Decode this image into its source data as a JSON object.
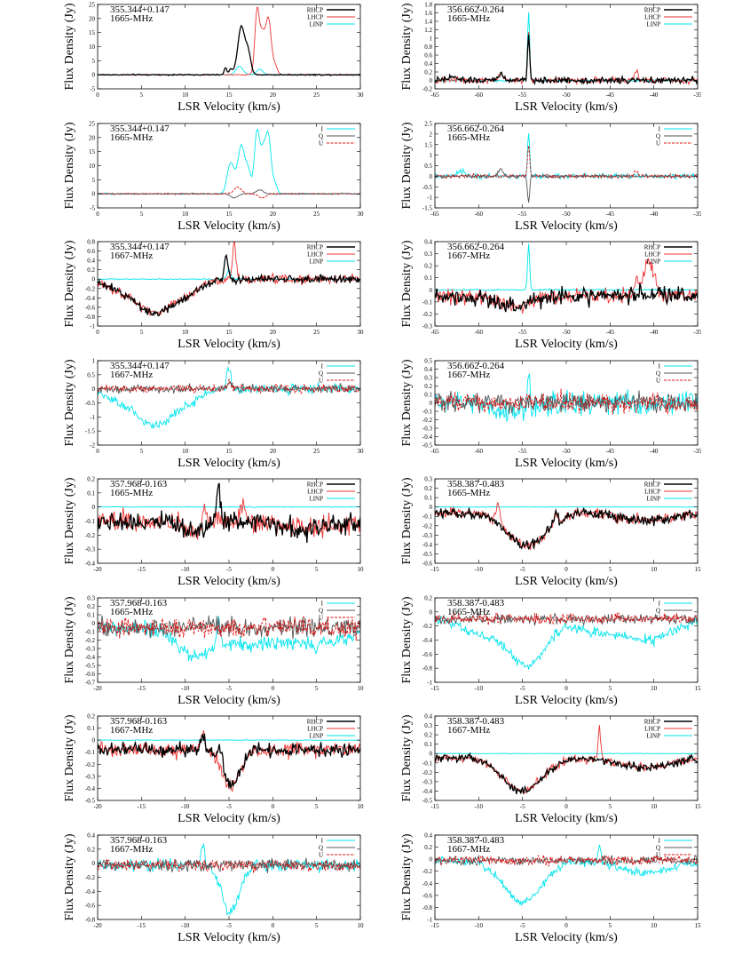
{
  "chart_data": [
    {
      "type": "line",
      "source": "355.344+0.147",
      "line": "1665-MHz",
      "mode": "circular",
      "ylim": [
        -5,
        25
      ],
      "yticks": [
        -5,
        0,
        5,
        10,
        15,
        20,
        25
      ],
      "xlim": [
        0,
        30
      ],
      "xticks": [
        0,
        5,
        10,
        15,
        20,
        25,
        30
      ],
      "xlabel": "LSR Velocity (km/s)",
      "ylabel": "Flux Density (Jy)",
      "legend": [
        "RHCP",
        "LHCP",
        "LINP"
      ],
      "baseline": 0,
      "features": [
        [
          [
            15.2,
            0.2,
            2
          ],
          [
            16.4,
            0.4,
            17
          ],
          [
            17.2,
            0.3,
            7.5
          ],
          [
            14.6,
            0.15,
            2.5
          ]
        ],
        [
          [
            18.2,
            0.25,
            22
          ],
          [
            18.8,
            0.3,
            14
          ],
          [
            19.5,
            0.3,
            19.5
          ],
          [
            20.2,
            0.3,
            3.5
          ]
        ],
        [
          [
            16.2,
            0.4,
            3
          ],
          [
            18.5,
            0.35,
            2
          ]
        ]
      ],
      "noise": [
        0.15,
        0.15,
        0.05
      ]
    },
    {
      "type": "line",
      "source": "356.662-0.264",
      "line": "1665-MHz",
      "mode": "circular",
      "ylim": [
        -0.2,
        1.8
      ],
      "yticks": [
        -0.2,
        0,
        0.2,
        0.4,
        0.6,
        0.8,
        1,
        1.2,
        1.4,
        1.6,
        1.8
      ],
      "xlim": [
        -65,
        -35
      ],
      "xticks": [
        -65,
        -60,
        -55,
        -50,
        -45,
        -40,
        -35
      ],
      "xlabel": "LSR Velocity (km/s)",
      "ylabel": "Flux Density (Jy)",
      "legend": [
        "RHCP",
        "LHCP",
        "LINP"
      ],
      "baseline": 0,
      "features": [
        [
          [
            -54.3,
            0.12,
            1.1
          ],
          [
            -57.5,
            0.3,
            0.15
          ],
          [
            -63,
            0.5,
            0.08
          ]
        ],
        [
          [
            -54.3,
            0.12,
            1.2
          ],
          [
            -42,
            0.2,
            0.25
          ],
          [
            -57.5,
            0.3,
            0.15
          ]
        ],
        [
          [
            -54.3,
            0.12,
            1.6
          ]
        ]
      ],
      "noise": [
        0.05,
        0.05,
        0.02
      ]
    },
    {
      "type": "line",
      "source": "355.344+0.147",
      "line": "1665-MHz",
      "mode": "stokes",
      "ylim": [
        -5,
        25
      ],
      "yticks": [
        -5,
        0,
        5,
        10,
        15,
        20,
        25
      ],
      "xlim": [
        0,
        30
      ],
      "xticks": [
        0,
        5,
        10,
        15,
        20,
        25,
        30
      ],
      "xlabel": "LSR Velocity (km/s)",
      "ylabel": "Flux Density (Jy)",
      "legend": [
        "I",
        "Q",
        "U"
      ],
      "baseline": 0,
      "features": [
        [
          [
            15.2,
            0.4,
            11
          ],
          [
            16.4,
            0.4,
            17
          ],
          [
            17.2,
            0.3,
            7.5
          ],
          [
            18.2,
            0.3,
            22
          ],
          [
            18.9,
            0.3,
            14
          ],
          [
            19.5,
            0.3,
            19.5
          ],
          [
            20.2,
            0.3,
            3.5
          ]
        ],
        [
          [
            15.6,
            0.4,
            -1.5
          ],
          [
            18.5,
            0.4,
            1.5
          ]
        ],
        [
          [
            16,
            0.4,
            2.5
          ],
          [
            18.8,
            0.4,
            -1.5
          ]
        ]
      ],
      "noise": [
        0.2,
        0.15,
        0.15
      ]
    },
    {
      "type": "line",
      "source": "356.662-0.264",
      "line": "1665-MHz",
      "mode": "stokes",
      "ylim": [
        -1.5,
        2.5
      ],
      "yticks": [
        -1.5,
        -1,
        -0.5,
        0,
        0.5,
        1,
        1.5,
        2,
        2.5
      ],
      "xlim": [
        -65,
        -35
      ],
      "xticks": [
        -65,
        -60,
        -55,
        -50,
        -45,
        -40,
        -35
      ],
      "xlabel": "LSR Velocity (km/s)",
      "ylabel": "Flux Density (Jy)",
      "legend": [
        "I",
        "Q",
        "U"
      ],
      "baseline": 0,
      "features": [
        [
          [
            -54.3,
            0.12,
            2.1
          ],
          [
            -62,
            0.5,
            0.2
          ]
        ],
        [
          [
            -54.3,
            0.12,
            -1.3
          ],
          [
            -57.5,
            0.3,
            0.3
          ]
        ],
        [
          [
            -54.3,
            0.12,
            1.5
          ],
          [
            -42,
            0.2,
            0.25
          ]
        ]
      ],
      "noise": [
        0.08,
        0.06,
        0.06
      ]
    },
    {
      "type": "line",
      "source": "355.344+0.147",
      "line": "1667-MHz",
      "mode": "circular",
      "ylim": [
        -1,
        0.8
      ],
      "yticks": [
        -1,
        -0.8,
        -0.6,
        -0.4,
        -0.2,
        0,
        0.2,
        0.4,
        0.6,
        0.8
      ],
      "xlim": [
        0,
        30
      ],
      "xticks": [
        0,
        5,
        10,
        15,
        20,
        25,
        30
      ],
      "xlabel": "LSR Velocity (km/s)",
      "ylabel": "Flux Density (Jy)",
      "legend": [
        "RHCP",
        "LHCP",
        "LINP"
      ],
      "baseline": 0,
      "features": [
        [
          [
            6.5,
            2.2,
            -0.72
          ],
          [
            2,
            1.5,
            -0.15
          ],
          [
            14.7,
            0.2,
            0.55
          ],
          [
            10.5,
            1.5,
            -0.2
          ]
        ],
        [
          [
            6.5,
            2.2,
            -0.72
          ],
          [
            2,
            1.5,
            -0.15
          ],
          [
            15.6,
            0.2,
            0.75
          ],
          [
            10.5,
            1.5,
            -0.2
          ]
        ],
        [
          [
            15,
            0.2,
            0.2
          ]
        ]
      ],
      "noise": [
        0.06,
        0.07,
        0.008
      ]
    },
    {
      "type": "line",
      "source": "356.662-0.264",
      "line": "1667-MHz",
      "mode": "circular",
      "ylim": [
        -0.3,
        0.4
      ],
      "yticks": [
        -0.3,
        -0.2,
        -0.1,
        0,
        0.1,
        0.2,
        0.3,
        0.4
      ],
      "xlim": [
        -65,
        -35
      ],
      "xticks": [
        -65,
        -60,
        -55,
        -50,
        -45,
        -40,
        -35
      ],
      "xlabel": "LSR Velocity (km/s)",
      "ylabel": "Flux Density (Jy)",
      "legend": [
        "RHCP",
        "LHCP",
        "LINP"
      ],
      "baseline": -0.05,
      "features": [
        [
          [
            -56,
            2,
            -0.08
          ]
        ],
        [
          [
            -56,
            2,
            -0.08
          ],
          [
            -40.5,
            0.6,
            0.28
          ],
          [
            -42,
            0.3,
            0.12
          ]
        ],
        [
          [
            -54.3,
            0.12,
            0.38
          ]
        ]
      ],
      "noise": [
        0.05,
        0.05,
        0.005
      ]
    },
    {
      "type": "line",
      "source": "355.344+0.147",
      "line": "1667-MHz",
      "mode": "stokes",
      "ylim": [
        -2,
        1
      ],
      "yticks": [
        -2,
        -1.5,
        -1,
        -0.5,
        0,
        0.5,
        1
      ],
      "xlim": [
        0,
        30
      ],
      "xticks": [
        0,
        5,
        10,
        15,
        20,
        25,
        30
      ],
      "xlabel": "LSR Velocity (km/s)",
      "ylabel": "Flux Density (Jy)",
      "legend": [
        "I",
        "Q",
        "U"
      ],
      "baseline": 0,
      "features": [
        [
          [
            6.5,
            2.2,
            -1.3
          ],
          [
            2,
            1.5,
            -0.3
          ],
          [
            15,
            0.2,
            0.8
          ],
          [
            10.5,
            1.5,
            -0.3
          ]
        ],
        [
          [
            15,
            0.2,
            0.2
          ]
        ],
        [
          [
            15,
            0.2,
            0.3
          ]
        ]
      ],
      "noise": [
        0.12,
        0.1,
        0.1
      ]
    },
    {
      "type": "line",
      "source": "356.662-0.264",
      "line": "1667-MHz",
      "mode": "stokes",
      "ylim": [
        -0.5,
        0.5
      ],
      "yticks": [
        -0.5,
        -0.4,
        -0.3,
        -0.2,
        -0.1,
        0,
        0.1,
        0.2,
        0.3,
        0.4,
        0.5
      ],
      "xlim": [
        -65,
        -35
      ],
      "xticks": [
        -65,
        -60,
        -55,
        -50,
        -45,
        -40,
        -35
      ],
      "xlabel": "LSR Velocity (km/s)",
      "ylabel": "Flux Density (Jy)",
      "legend": [
        "I",
        "Q",
        "U"
      ],
      "baseline": 0,
      "features": [
        [
          [
            -56,
            2,
            -0.12
          ],
          [
            -54.3,
            0.12,
            0.45
          ]
        ],
        [
          [
            -54.3,
            0.12,
            0.05
          ]
        ],
        [
          [
            -54.3,
            0.12,
            0.1
          ]
        ]
      ],
      "noise": [
        0.1,
        0.08,
        0.08
      ]
    },
    {
      "type": "line",
      "source": "357.968-0.163",
      "line": "1665-MHz",
      "mode": "circular",
      "ylim": [
        -0.4,
        0.2
      ],
      "yticks": [
        -0.4,
        -0.3,
        -0.2,
        -0.1,
        0,
        0.1,
        0.2
      ],
      "xlim": [
        -20,
        10
      ],
      "xticks": [
        -20,
        -15,
        -10,
        -5,
        0,
        5,
        10
      ],
      "xlabel": "LSR Velocity (km/s)",
      "ylabel": "Flux Density (Jy)",
      "legend": [
        "RHCP",
        "LHCP",
        "LINP"
      ],
      "baseline": -0.1,
      "features": [
        [
          [
            -6.2,
            0.2,
            0.25
          ],
          [
            -9,
            1.2,
            -0.08
          ],
          [
            4,
            3,
            -0.05
          ]
        ],
        [
          [
            -7.8,
            0.2,
            0.2
          ],
          [
            -9,
            1.2,
            -0.08
          ],
          [
            -3.5,
            0.3,
            0.1
          ],
          [
            4,
            3,
            -0.05
          ]
        ],
        []
      ],
      "noise": [
        0.05,
        0.05,
        0.002
      ]
    },
    {
      "type": "line",
      "source": "358.387-0.483",
      "line": "1665-MHz",
      "mode": "circular",
      "ylim": [
        -0.6,
        0.3
      ],
      "yticks": [
        -0.6,
        -0.5,
        -0.4,
        -0.3,
        -0.2,
        -0.1,
        0,
        0.1,
        0.2,
        0.3
      ],
      "xlim": [
        -15,
        15
      ],
      "xticks": [
        -15,
        -10,
        -5,
        0,
        5,
        10,
        15
      ],
      "xlabel": "LSR Velocity (km/s)",
      "ylabel": "Flux Density (Jy)",
      "legend": [
        "RHCP",
        "LHCP",
        "LINP"
      ],
      "baseline": -0.06,
      "features": [
        [
          [
            -4.5,
            2.2,
            -0.35
          ],
          [
            -1.2,
            0.2,
            0.1
          ],
          [
            9,
            3,
            -0.08
          ]
        ],
        [
          [
            -4.5,
            2.2,
            -0.35
          ],
          [
            -7.8,
            0.2,
            0.22
          ],
          [
            -1.2,
            0.2,
            0.08
          ],
          [
            9,
            3,
            -0.08
          ]
        ],
        []
      ],
      "noise": [
        0.04,
        0.04,
        0.002
      ]
    },
    {
      "type": "line",
      "source": "357.968-0.163",
      "line": "1665-MHz",
      "mode": "stokes",
      "ylim": [
        -0.7,
        0.3
      ],
      "yticks": [
        -0.7,
        -0.6,
        -0.5,
        -0.4,
        -0.3,
        -0.2,
        -0.1,
        0,
        0.1,
        0.2,
        0.3
      ],
      "xlim": [
        -20,
        10
      ],
      "xticks": [
        -20,
        -15,
        -10,
        -5,
        0,
        5,
        10
      ],
      "xlabel": "LSR Velocity (km/s)",
      "ylabel": "Flux Density (Jy)",
      "legend": [
        "I",
        "Q",
        "U"
      ],
      "baseline": -0.05,
      "features": [
        [
          [
            -9,
            2,
            -0.3
          ],
          [
            -6.2,
            0.2,
            0.35
          ],
          [
            -2,
            4,
            -0.2
          ],
          [
            6,
            3,
            -0.15
          ]
        ],
        [],
        []
      ],
      "noise": [
        0.06,
        0.08,
        0.08
      ]
    },
    {
      "type": "line",
      "source": "358.387-0.483",
      "line": "1665-MHz",
      "mode": "stokes",
      "ylim": [
        -1,
        0.2
      ],
      "yticks": [
        -1,
        -0.8,
        -0.6,
        -0.4,
        -0.2,
        0,
        0.2
      ],
      "xlim": [
        -15,
        15
      ],
      "xticks": [
        -15,
        -10,
        -5,
        0,
        5,
        10,
        15
      ],
      "xlabel": "LSR Velocity (km/s)",
      "ylabel": "Flux Density (Jy)",
      "legend": [
        "I",
        "Q",
        "U"
      ],
      "baseline": -0.1,
      "features": [
        [
          [
            -4.5,
            2.2,
            -0.65
          ],
          [
            -10,
            2,
            -0.2
          ],
          [
            9,
            3,
            -0.3
          ],
          [
            3,
            2,
            -0.15
          ]
        ],
        [],
        []
      ],
      "noise": [
        0.05,
        0.05,
        0.05
      ]
    },
    {
      "type": "line",
      "source": "357.968-0.163",
      "line": "1667-MHz",
      "mode": "circular",
      "ylim": [
        -0.5,
        0.2
      ],
      "yticks": [
        -0.5,
        -0.4,
        -0.3,
        -0.2,
        -0.1,
        0,
        0.1,
        0.2
      ],
      "xlim": [
        -20,
        10
      ],
      "xticks": [
        -20,
        -15,
        -10,
        -5,
        0,
        5,
        10
      ],
      "xlabel": "LSR Velocity (km/s)",
      "ylabel": "Flux Density (Jy)",
      "legend": [
        "RHCP",
        "LHCP",
        "LINP"
      ],
      "baseline": -0.08,
      "features": [
        [
          [
            -4.8,
            1,
            -0.3
          ],
          [
            -6,
            0.3,
            0.15
          ],
          [
            -8,
            0.2,
            0.12
          ]
        ],
        [
          [
            -4.8,
            1,
            -0.3
          ],
          [
            -8,
            0.2,
            0.15
          ]
        ],
        []
      ],
      "noise": [
        0.04,
        0.04,
        0.002
      ]
    },
    {
      "type": "line",
      "source": "358.387-0.483",
      "line": "1667-MHz",
      "mode": "circular",
      "ylim": [
        -0.5,
        0.4
      ],
      "yticks": [
        -0.5,
        -0.4,
        -0.3,
        -0.2,
        -0.1,
        0,
        0.1,
        0.2,
        0.3,
        0.4
      ],
      "xlim": [
        -15,
        15
      ],
      "xticks": [
        -15,
        -10,
        -5,
        0,
        5,
        10,
        15
      ],
      "xlabel": "LSR Velocity (km/s)",
      "ylabel": "Flux Density (Jy)",
      "legend": [
        "RHCP",
        "LHCP",
        "LINP"
      ],
      "baseline": -0.05,
      "features": [
        [
          [
            -5,
            2.2,
            -0.35
          ],
          [
            9,
            3,
            -0.1
          ]
        ],
        [
          [
            -5,
            2.2,
            -0.35
          ],
          [
            3.8,
            0.15,
            0.35
          ],
          [
            9,
            3,
            -0.1
          ]
        ],
        []
      ],
      "noise": [
        0.03,
        0.03,
        0.002
      ]
    },
    {
      "type": "line",
      "source": "357.968-0.163",
      "line": "1667-MHz",
      "mode": "stokes",
      "ylim": [
        -0.8,
        0.4
      ],
      "yticks": [
        -0.8,
        -0.6,
        -0.4,
        -0.2,
        0,
        0.2,
        0.4
      ],
      "xlim": [
        -20,
        10
      ],
      "xticks": [
        -20,
        -15,
        -10,
        -5,
        0,
        5,
        10
      ],
      "xlabel": "LSR Velocity (km/s)",
      "ylabel": "Flux Density (Jy)",
      "legend": [
        "I",
        "Q",
        "U"
      ],
      "baseline": -0.03,
      "features": [
        [
          [
            -4.8,
            1,
            -0.65
          ],
          [
            -8,
            0.2,
            0.3
          ]
        ],
        [],
        []
      ],
      "noise": [
        0.06,
        0.06,
        0.06
      ]
    },
    {
      "type": "line",
      "source": "358.387-0.483",
      "line": "1667-MHz",
      "mode": "stokes",
      "ylim": [
        -1,
        0.4
      ],
      "yticks": [
        -1,
        -0.8,
        -0.6,
        -0.4,
        -0.2,
        0,
        0.2,
        0.4
      ],
      "xlim": [
        -15,
        15
      ],
      "xticks": [
        -15,
        -10,
        -5,
        0,
        5,
        10,
        15
      ],
      "xlabel": "LSR Velocity (km/s)",
      "ylabel": "Flux Density (Jy)",
      "legend": [
        "I",
        "Q",
        "U"
      ],
      "baseline": -0.02,
      "features": [
        [
          [
            -5,
            2.2,
            -0.7
          ],
          [
            9,
            3,
            -0.2
          ],
          [
            3.8,
            0.15,
            0.3
          ]
        ],
        [],
        []
      ],
      "noise": [
        0.05,
        0.05,
        0.05
      ]
    }
  ],
  "colors": {
    "RHCP": "#000000",
    "LHCP": "#ee3333",
    "LINP": "#00e5ee",
    "I": "#00e5ee",
    "Q": "#555555",
    "U": "#dd1111"
  }
}
